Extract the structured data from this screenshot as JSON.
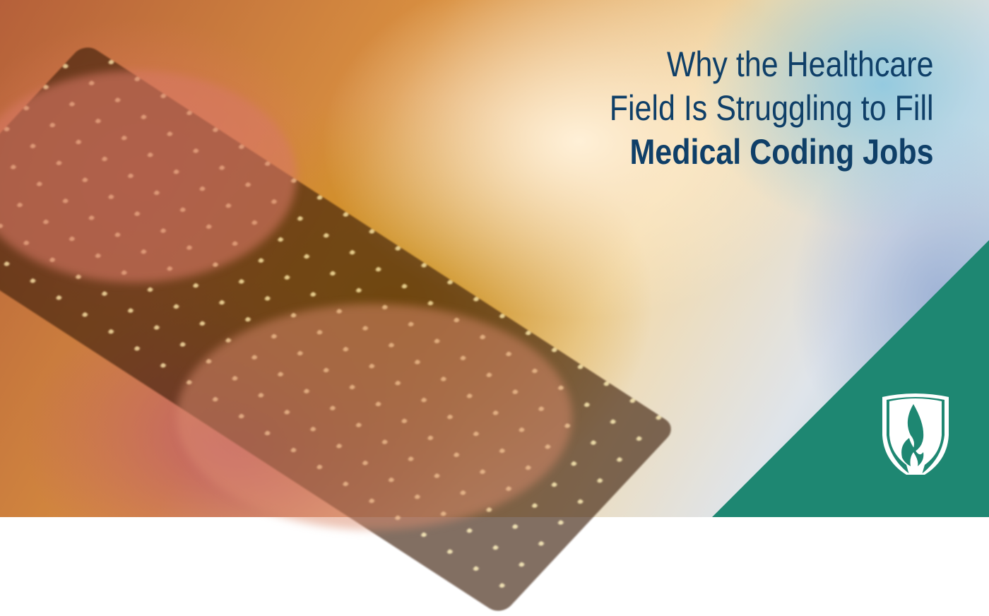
{
  "banner": {
    "title_lines": [
      "Why the Healthcare",
      "Field Is Struggling to Fill",
      "Medical Coding Jobs"
    ],
    "logo": "shield-flame-icon"
  },
  "colors": {
    "title": "#0f3f68",
    "accent_triangle": "#1e8772",
    "logo": "#ffffff"
  }
}
